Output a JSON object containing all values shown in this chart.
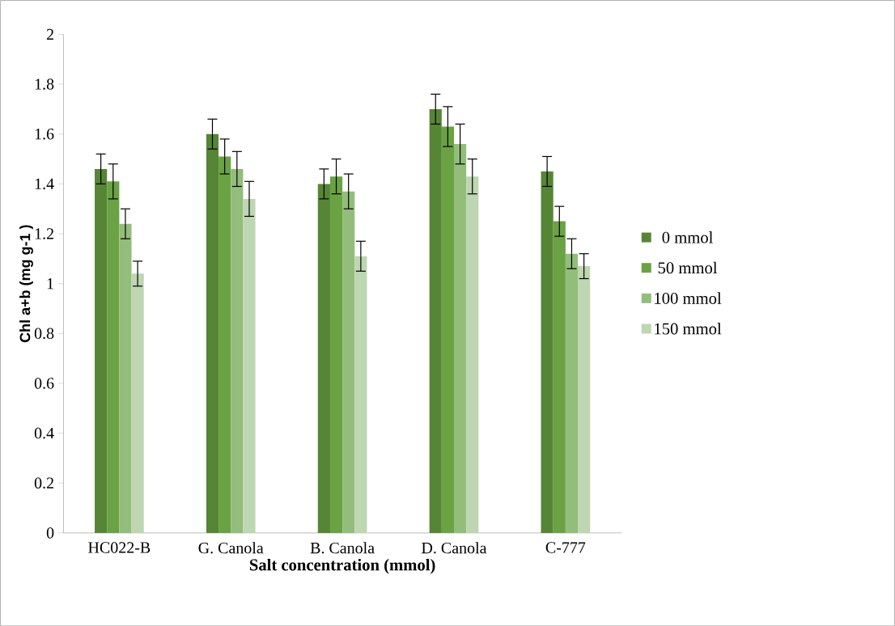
{
  "chart_data": {
    "type": "bar",
    "xlabel": "Salt concentration (mmol)",
    "ylabel": "Chl a+b (mg g-1 )",
    "categories": [
      "HC022-B",
      "G. Canola",
      "B. Canola",
      "D. Canola",
      "C-777"
    ],
    "series": [
      {
        "name": "0 mmol",
        "color": "#568536",
        "values": [
          1.46,
          1.6,
          1.4,
          1.7,
          1.45
        ],
        "errors": [
          0.06,
          0.06,
          0.06,
          0.06,
          0.06
        ]
      },
      {
        "name": "50 mmol",
        "color": "#6aa244",
        "values": [
          1.41,
          1.51,
          1.43,
          1.63,
          1.25
        ],
        "errors": [
          0.07,
          0.07,
          0.07,
          0.08,
          0.06
        ]
      },
      {
        "name": "100 mmol",
        "color": "#93bd7a",
        "values": [
          1.24,
          1.46,
          1.37,
          1.56,
          1.12
        ],
        "errors": [
          0.06,
          0.07,
          0.07,
          0.08,
          0.06
        ]
      },
      {
        "name": "150 mmol",
        "color": "#bed6b2",
        "values": [
          1.04,
          1.34,
          1.11,
          1.43,
          1.07
        ],
        "errors": [
          0.05,
          0.07,
          0.06,
          0.07,
          0.05
        ]
      }
    ],
    "ylim": [
      0,
      2
    ],
    "yticks": [
      0,
      0.2,
      0.4,
      0.6,
      0.8,
      1,
      1.2,
      1.4,
      1.6,
      1.8,
      2
    ],
    "grid": false,
    "legend": "right"
  }
}
